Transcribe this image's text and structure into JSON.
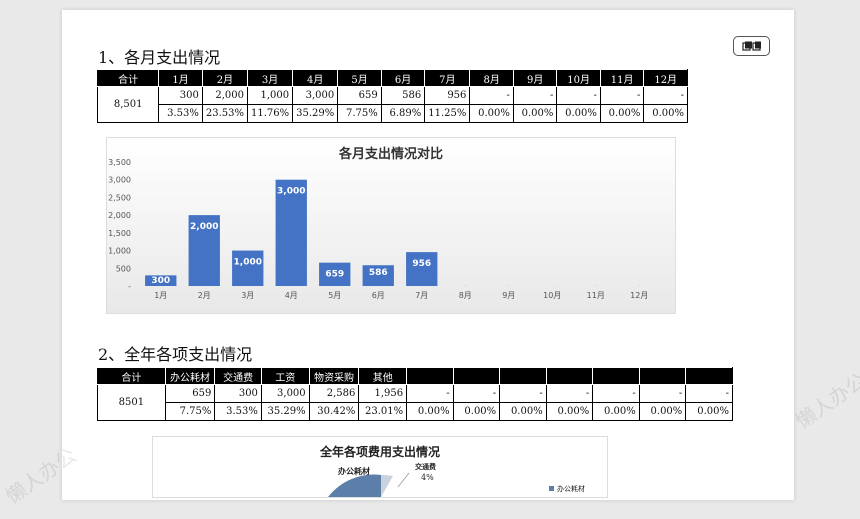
{
  "watermark": "懒人办公",
  "section1": {
    "title": "1、各月支出情况",
    "headers": [
      "合计",
      "1月",
      "2月",
      "3月",
      "4月",
      "5月",
      "6月",
      "7月",
      "8月",
      "9月",
      "10月",
      "11月",
      "12月"
    ],
    "total": "8,501",
    "values": [
      "300",
      "2,000",
      "1,000",
      "3,000",
      "659",
      "586",
      "956",
      "-",
      "-",
      "-",
      "-",
      "-"
    ],
    "percents": [
      "3.53%",
      "23.53%",
      "11.76%",
      "35.29%",
      "7.75%",
      "6.89%",
      "11.25%",
      "0.00%",
      "0.00%",
      "0.00%",
      "0.00%",
      "0.00%"
    ]
  },
  "chart_data": [
    {
      "type": "bar",
      "title": "各月支出情况对比",
      "categories": [
        "1月",
        "2月",
        "3月",
        "4月",
        "5月",
        "6月",
        "7月",
        "8月",
        "9月",
        "10月",
        "11月",
        "12月"
      ],
      "values": [
        300,
        2000,
        1000,
        3000,
        659,
        586,
        956,
        0,
        0,
        0,
        0,
        0
      ],
      "data_labels": [
        "300",
        "2,000",
        "1,000",
        "3,000",
        "659",
        "586",
        "956",
        "",
        "",
        "",
        "",
        ""
      ],
      "yticks": [
        "-",
        "500",
        "1,000",
        "1,500",
        "2,000",
        "2,500",
        "3,000",
        "3,500"
      ],
      "ylim": [
        0,
        3500
      ],
      "bar_color": "#4472c4",
      "grid": false,
      "legend": "none"
    },
    {
      "type": "pie",
      "title": "全年各项费用支出情况",
      "visible_labels": [
        {
          "name": "办公耗材",
          "pct": ""
        },
        {
          "name": "交通费",
          "pct": "4%"
        }
      ]
    }
  ],
  "section2": {
    "title": "2、全年各项支出情况",
    "headers": [
      "合计",
      "办公耗材",
      "交通费",
      "工资",
      "物资采购",
      "其他",
      "",
      "",
      "",
      "",
      "",
      "",
      ""
    ],
    "total": "8501",
    "values": [
      "659",
      "300",
      "3,000",
      "2,586",
      "1,956",
      "-",
      "-",
      "-",
      "-",
      "-",
      "-",
      "-"
    ],
    "percents": [
      "7.75%",
      "3.53%",
      "35.29%",
      "30.42%",
      "23.01%",
      "0.00%",
      "0.00%",
      "0.00%",
      "0.00%",
      "0.00%",
      "0.00%",
      "0.00%"
    ]
  }
}
